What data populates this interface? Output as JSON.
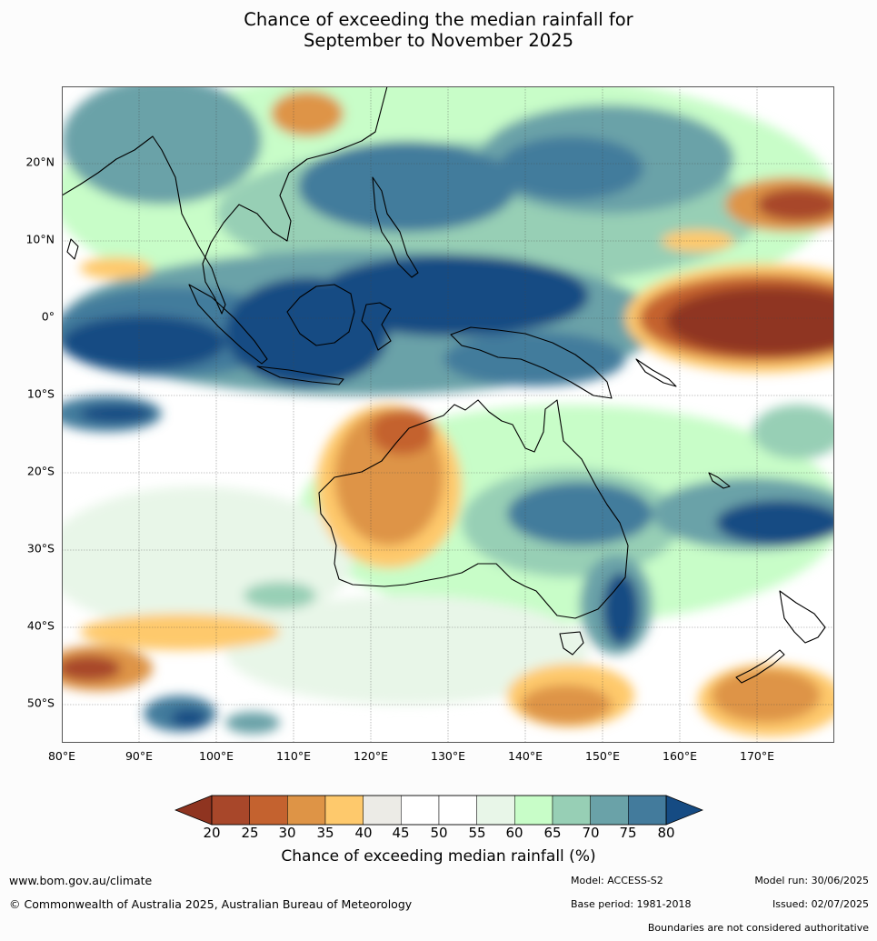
{
  "title": {
    "line1": "Chance of exceeding the median rainfall for",
    "line2": "September to November 2025"
  },
  "map": {
    "lat_labels": [
      "20°N",
      "10°N",
      "0°",
      "10°S",
      "20°S",
      "30°S",
      "40°S",
      "50°S"
    ],
    "lon_labels": [
      "80°E",
      "90°E",
      "100°E",
      "110°E",
      "120°E",
      "130°E",
      "140°E",
      "150°E",
      "160°E",
      "170°E"
    ]
  },
  "colorbar": {
    "ticks": [
      "20",
      "25",
      "30",
      "35",
      "40",
      "45",
      "50",
      "55",
      "60",
      "65",
      "70",
      "75",
      "80"
    ],
    "colors": [
      "#a8472a",
      "#c4622f",
      "#de9446",
      "#fec96c",
      "#ecebe6",
      "#ffffff",
      "#ffffff",
      "#e8f6e8",
      "#c8fdc8",
      "#97cfb5",
      "#6aa2a8",
      "#437b9c"
    ],
    "under_color": "#8f3420",
    "over_color": "#154b83",
    "label": "Chance of exceeding median rainfall (%)"
  },
  "footer": {
    "website": "www.bom.gov.au/climate",
    "copyright": "© Commonwealth of Australia 2025, Australian Bureau of Meteorology",
    "model": "Model: ACCESS-S2",
    "base_period": "Base period: 1981-2018",
    "model_run": "Model run: 30/06/2025",
    "issued": "Issued: 02/07/2025",
    "boundaries": "Boundaries are not considered authoritative"
  }
}
